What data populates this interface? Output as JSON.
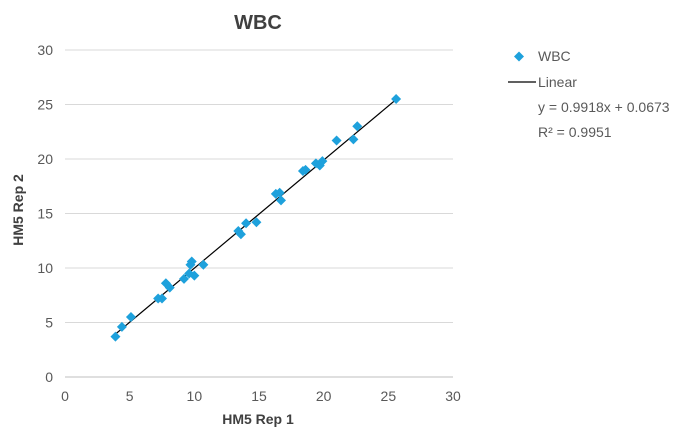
{
  "chart_data": {
    "type": "scatter",
    "title": "WBC",
    "xlabel": "HM5 Rep 1",
    "ylabel": "HM5 Rep 2",
    "xlim": [
      0,
      30
    ],
    "ylim": [
      0,
      30
    ],
    "x_ticks": [
      "0",
      "5",
      "10",
      "15",
      "20",
      "25",
      "30"
    ],
    "y_ticks": [
      "0",
      "5",
      "10",
      "15",
      "20",
      "25",
      "30"
    ],
    "grid": "horizontal",
    "legend_position": "right",
    "series": [
      {
        "name": "WBC",
        "color": "#1ea1dc",
        "marker": "diamond",
        "points": [
          [
            3.9,
            3.7
          ],
          [
            4.4,
            4.6
          ],
          [
            5.1,
            5.5
          ],
          [
            7.2,
            7.2
          ],
          [
            7.5,
            7.2
          ],
          [
            7.8,
            8.6
          ],
          [
            8.1,
            8.2
          ],
          [
            9.2,
            9.0
          ],
          [
            9.6,
            9.5
          ],
          [
            9.7,
            10.3
          ],
          [
            9.8,
            10.6
          ],
          [
            10.0,
            9.3
          ],
          [
            10.7,
            10.3
          ],
          [
            13.4,
            13.4
          ],
          [
            13.6,
            13.1
          ],
          [
            14.0,
            14.1
          ],
          [
            14.8,
            14.2
          ],
          [
            16.3,
            16.8
          ],
          [
            16.6,
            16.9
          ],
          [
            16.7,
            16.2
          ],
          [
            18.4,
            18.9
          ],
          [
            18.6,
            19.0
          ],
          [
            19.4,
            19.6
          ],
          [
            19.7,
            19.4
          ],
          [
            19.9,
            19.8
          ],
          [
            21.0,
            21.7
          ],
          [
            22.3,
            21.8
          ],
          [
            22.6,
            23.0
          ],
          [
            25.6,
            25.5
          ]
        ]
      }
    ],
    "trendline": {
      "name": "Linear",
      "color": "#000000",
      "slope": 0.9918,
      "intercept": 0.0673,
      "x_range": [
        3.9,
        25.6
      ],
      "equation": "y = 0.9918x + 0.0673",
      "r2": "R² = 0.9951"
    }
  }
}
